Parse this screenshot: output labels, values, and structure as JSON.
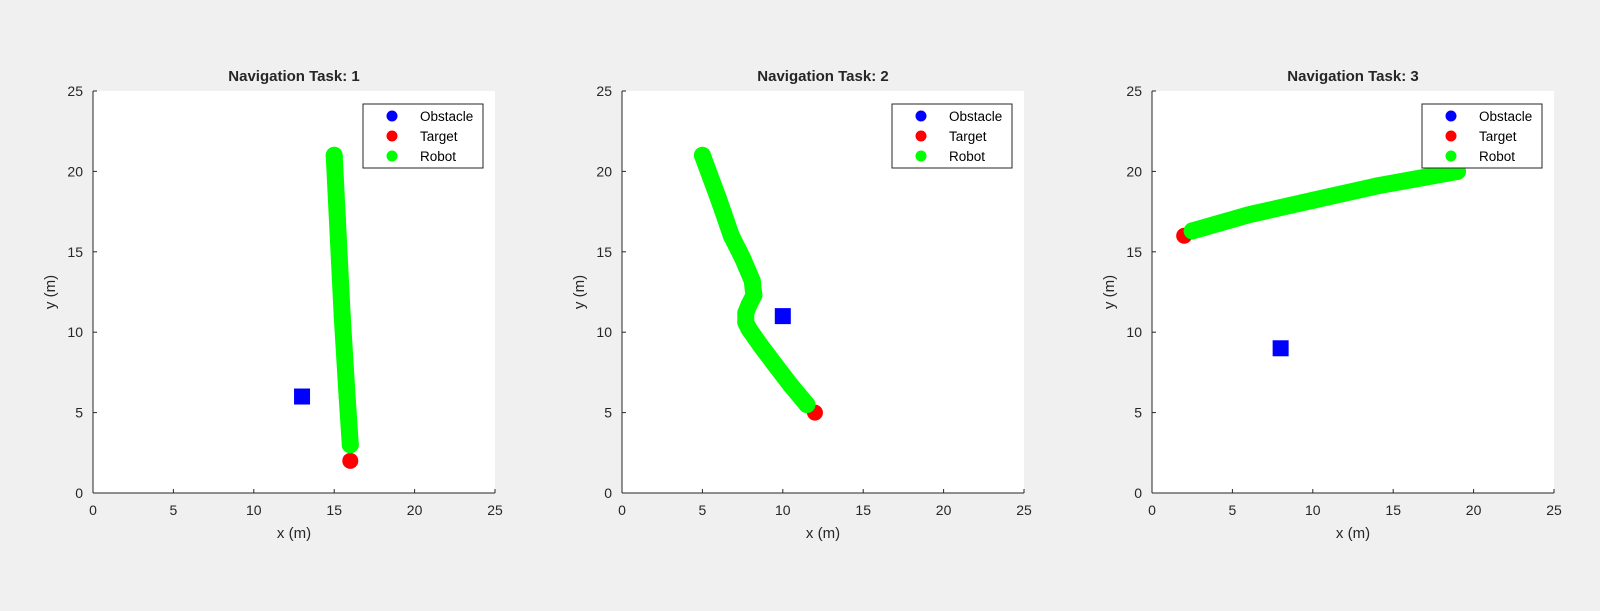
{
  "figure": {
    "background": "#f0f0f0"
  },
  "chart_data": [
    {
      "type": "scatter",
      "title": "Navigation Task: 1",
      "xlabel": "x (m)",
      "ylabel": "y (m)",
      "xlim": [
        0,
        25
      ],
      "ylim": [
        0,
        25
      ],
      "xticks": [
        "0",
        "5",
        "10",
        "15",
        "20",
        "25"
      ],
      "yticks": [
        "0",
        "5",
        "10",
        "15",
        "20",
        "25"
      ],
      "grid": false,
      "legend_placement": "top-right",
      "legend": [
        "Obstacle",
        "Target",
        "Robot"
      ],
      "series": [
        {
          "name": "Obstacle",
          "marker": "square",
          "color": "#0000ff",
          "x": [
            13
          ],
          "y": [
            6
          ]
        },
        {
          "name": "Target",
          "marker": "circle",
          "color": "#ff0000",
          "x": [
            16
          ],
          "y": [
            2
          ]
        },
        {
          "name": "Robot",
          "marker": "circle",
          "color": "#00ff00",
          "x": [
            15,
            15.2,
            15.5,
            15.8,
            16
          ],
          "y": [
            21,
            17,
            11,
            6,
            3
          ]
        }
      ]
    },
    {
      "type": "scatter",
      "title": "Navigation Task: 2",
      "xlabel": "x (m)",
      "ylabel": "y (m)",
      "xlim": [
        0,
        25
      ],
      "ylim": [
        0,
        25
      ],
      "xticks": [
        "0",
        "5",
        "10",
        "15",
        "20",
        "25"
      ],
      "yticks": [
        "0",
        "5",
        "10",
        "15",
        "20",
        "25"
      ],
      "grid": false,
      "legend_placement": "top-right",
      "legend": [
        "Obstacle",
        "Target",
        "Robot"
      ],
      "series": [
        {
          "name": "Obstacle",
          "marker": "square",
          "color": "#0000ff",
          "x": [
            10
          ],
          "y": [
            11
          ]
        },
        {
          "name": "Target",
          "marker": "circle",
          "color": "#ff0000",
          "x": [
            12
          ],
          "y": [
            5
          ]
        },
        {
          "name": "Robot",
          "marker": "circle",
          "color": "#00ff00",
          "x": [
            5,
            6,
            6.8,
            7.5,
            8.1,
            8.2,
            7.9,
            7.7,
            7.7,
            7.9,
            8.6,
            9.5,
            10.5,
            11.5
          ],
          "y": [
            21,
            18.3,
            16,
            14.6,
            13.2,
            12.3,
            11.7,
            11.2,
            10.6,
            10.2,
            9.2,
            8,
            6.7,
            5.5
          ]
        }
      ]
    },
    {
      "type": "scatter",
      "title": "Navigation Task: 3",
      "xlabel": "x (m)",
      "ylabel": "y (m)",
      "xlim": [
        0,
        25
      ],
      "ylim": [
        0,
        25
      ],
      "xticks": [
        "0",
        "5",
        "10",
        "15",
        "20",
        "25"
      ],
      "yticks": [
        "0",
        "5",
        "10",
        "15",
        "20",
        "25"
      ],
      "grid": false,
      "legend_placement": "top-right",
      "legend": [
        "Obstacle",
        "Target",
        "Robot"
      ],
      "series": [
        {
          "name": "Obstacle",
          "marker": "square",
          "color": "#0000ff",
          "x": [
            8
          ],
          "y": [
            9
          ]
        },
        {
          "name": "Target",
          "marker": "circle",
          "color": "#ff0000",
          "x": [
            2
          ],
          "y": [
            16
          ]
        },
        {
          "name": "Robot",
          "marker": "circle",
          "color": "#00ff00",
          "x": [
            2.5,
            6,
            10,
            14,
            19
          ],
          "y": [
            16.3,
            17.3,
            18.2,
            19.1,
            20
          ]
        }
      ]
    }
  ]
}
